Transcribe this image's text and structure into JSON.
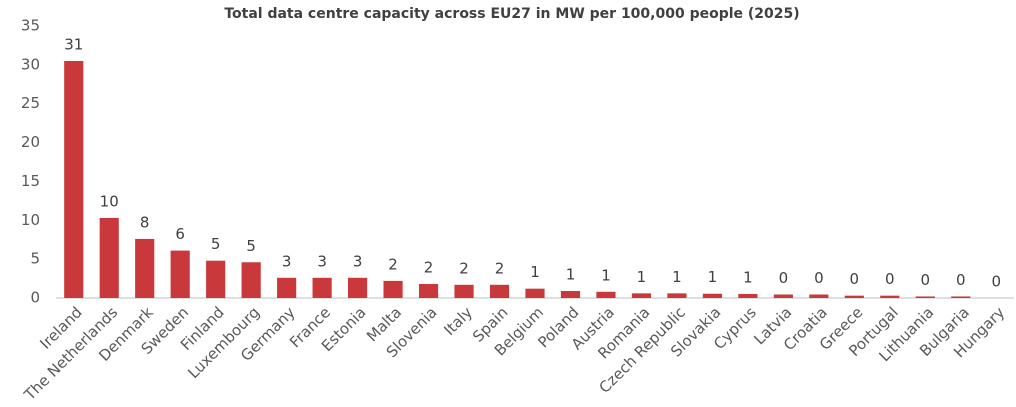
{
  "chart_data": {
    "type": "bar",
    "title": "Total data centre capacity across EU27 in MW per 100,000 people (2025)",
    "categories": [
      "Ireland",
      "The Netherlands",
      "Denmark",
      "Sweden",
      "Finland",
      "Luxembourg",
      "Germany",
      "France",
      "Estonia",
      "Malta",
      "Slovenia",
      "Italy",
      "Spain",
      "Belgium",
      "Poland",
      "Austria",
      "Romania",
      "Czech Republic",
      "Slovakia",
      "Cyprus",
      "Latvia",
      "Croatia",
      "Greece",
      "Portugal",
      "Lithuania",
      "Bulgaria",
      "Hungary"
    ],
    "values": [
      30.5,
      10.3,
      7.6,
      6.1,
      4.8,
      4.6,
      2.6,
      2.6,
      2.6,
      2.2,
      1.8,
      1.7,
      1.7,
      1.2,
      0.9,
      0.8,
      0.6,
      0.6,
      0.55,
      0.52,
      0.45,
      0.45,
      0.3,
      0.3,
      0.2,
      0.2,
      0
    ],
    "value_labels": [
      "31",
      "10",
      "8",
      "6",
      "5",
      "5",
      "3",
      "3",
      "3",
      "2",
      "2",
      "2",
      "2",
      "1",
      "1",
      "1",
      "1",
      "1",
      "1",
      "1",
      "0",
      "0",
      "0",
      "0",
      "0",
      "0",
      "0"
    ],
    "color": "#c9393b",
    "ylim": [
      0,
      35
    ],
    "yticks": [
      0,
      5,
      10,
      15,
      20,
      25,
      30,
      35
    ],
    "grid": false
  }
}
